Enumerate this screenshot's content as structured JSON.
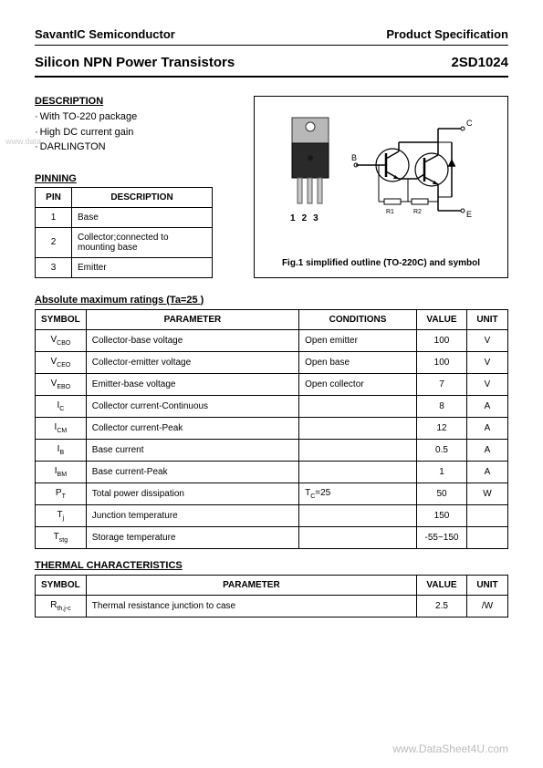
{
  "header": {
    "company": "SavantIC Semiconductor",
    "doctype": "Product Specification",
    "title": "Silicon NPN Power Transistors",
    "part_number": "2SD1024"
  },
  "description": {
    "heading": "DESCRIPTION",
    "items": [
      "With TO-220 package",
      "High DC current gain",
      "DARLINGTON"
    ]
  },
  "pinning": {
    "heading": "PINNING",
    "columns": [
      "PIN",
      "DESCRIPTION"
    ],
    "rows": [
      [
        "1",
        "Base"
      ],
      [
        "2",
        "Collector;connected to mounting base"
      ],
      [
        "3",
        "Emitter"
      ]
    ]
  },
  "figure": {
    "pin_labels": [
      "1",
      "2",
      "3"
    ],
    "caption": "Fig.1 simplified outline (TO-220C) and symbol",
    "symbol_labels": {
      "b": "B",
      "c": "C",
      "e": "E",
      "r1": "R1",
      "r2": "R2"
    }
  },
  "ratings": {
    "heading": "Absolute maximum ratings (Ta=25 )",
    "columns": [
      "SYMBOL",
      "PARAMETER",
      "CONDITIONS",
      "VALUE",
      "UNIT"
    ],
    "rows": [
      {
        "sym": "V",
        "sub": "CBO",
        "param": "Collector-base voltage",
        "cond": "Open emitter",
        "val": "100",
        "unit": "V"
      },
      {
        "sym": "V",
        "sub": "CEO",
        "param": "Collector-emitter voltage",
        "cond": "Open base",
        "val": "100",
        "unit": "V"
      },
      {
        "sym": "V",
        "sub": "EBO",
        "param": "Emitter-base voltage",
        "cond": "Open collector",
        "val": "7",
        "unit": "V"
      },
      {
        "sym": "I",
        "sub": "C",
        "param": "Collector current-Continuous",
        "cond": "",
        "val": "8",
        "unit": "A"
      },
      {
        "sym": "I",
        "sub": "CM",
        "param": "Collector current-Peak",
        "cond": "",
        "val": "12",
        "unit": "A"
      },
      {
        "sym": "I",
        "sub": "B",
        "param": "Base current",
        "cond": "",
        "val": "0.5",
        "unit": "A"
      },
      {
        "sym": "I",
        "sub": "BM",
        "param": "Base current-Peak",
        "cond": "",
        "val": "1",
        "unit": "A"
      },
      {
        "sym": "P",
        "sub": "T",
        "param": "Total power dissipation",
        "cond": "T_C=25",
        "val": "50",
        "unit": "W"
      },
      {
        "sym": "T",
        "sub": "j",
        "param": "Junction temperature",
        "cond": "",
        "val": "150",
        "unit": ""
      },
      {
        "sym": "T",
        "sub": "stg",
        "param": "Storage temperature",
        "cond": "",
        "val": "-55~150",
        "unit": ""
      }
    ]
  },
  "thermal": {
    "heading": "THERMAL CHARACTERISTICS",
    "columns": [
      "SYMBOL",
      "PARAMETER",
      "VALUE",
      "UNIT"
    ],
    "rows": [
      {
        "sym": "R",
        "sub": "th,j-c",
        "param": "Thermal resistance junction to case",
        "val": "2.5",
        "unit": "/W"
      }
    ]
  },
  "watermark": {
    "left": "www.data",
    "bottom": "www.DataSheet4U.com"
  },
  "colors": {
    "text": "#000000",
    "border": "#000000",
    "watermark": "#cccccc",
    "to220_body": "#2a2a2a",
    "to220_tab": "#b8b8b8",
    "to220_pin": "#c8c8c8"
  }
}
